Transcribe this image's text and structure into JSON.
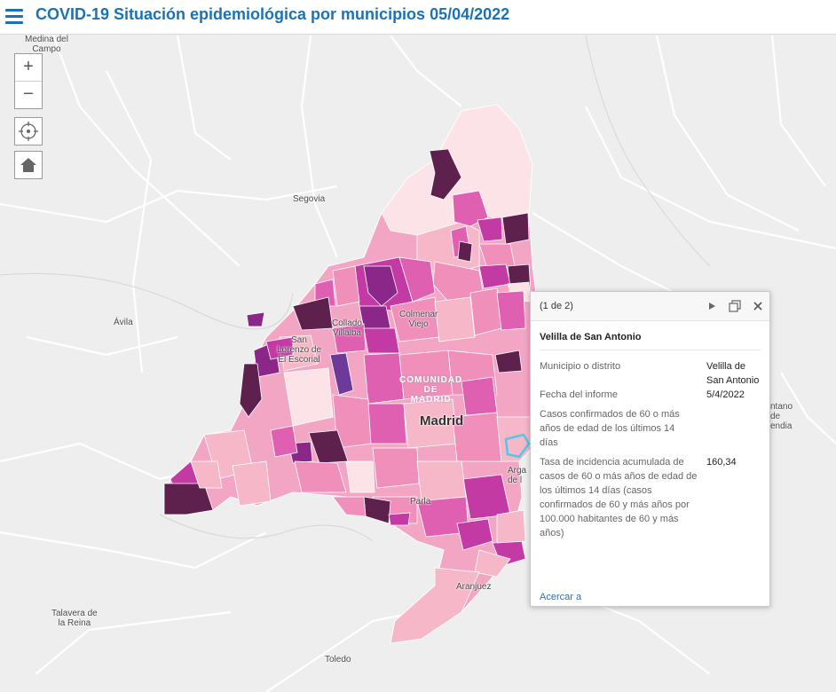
{
  "header": {
    "title": "COVID-19 Situación epidemiológica por municipios 05/04/2022"
  },
  "icons": {
    "menu": "hamburger-menu-icon",
    "locate": "crosshair-icon",
    "home": "home-icon",
    "next": "play-triangle-icon",
    "dock": "dock-icon",
    "close": "close-icon"
  },
  "controls": {
    "zoom_in": "+",
    "zoom_out": "−"
  },
  "map": {
    "labels": {
      "medina": "Medina del\nCampo",
      "segovia": "Segovia",
      "avila": "Ávila",
      "collado": "Collado\nVillalba",
      "colmenar": "Colmenar\nViejo",
      "sanlorenzo": "San\nLorenzo de\nEl Escorial",
      "comunidad": "COMUNIDAD\nDE\nMADRID",
      "madrid": "Madrid",
      "parla": "Parla",
      "aranjuez": "Aranjuez",
      "talavera": "Talavera de\nla Reina",
      "toledo": "Toledo",
      "arganda": "Arga\nde l",
      "mantano": "ntano\nde\nendia"
    },
    "colors": {
      "light": "#fbe3e8",
      "pink1": "#f6b8c8",
      "pink2": "#ef8fba",
      "pink3": "#df5fb0",
      "magenta": "#c33aa5",
      "purple": "#8b2789",
      "dark": "#5e214d",
      "selected": "#4fc9e9"
    }
  },
  "popup": {
    "counter": "(1 de 2)",
    "title": "Velilla de San Antonio",
    "fields": [
      {
        "label": "Municipio o distrito",
        "value": "Velilla de San Antonio"
      },
      {
        "label": "Fecha del informe",
        "value": "5/4/2022"
      },
      {
        "label": "Casos confirmados de 60 o más años de edad de los últimos 14 días",
        "value": ""
      },
      {
        "label": "Tasa de incidencia acumulada de casos de 60 o más años de edad de los últimos 14 días (casos confirmados de 60 y más años por 100.000 habitantes de 60 y más años)",
        "value": "160,34"
      }
    ],
    "zoom_link": "Acercar a"
  }
}
